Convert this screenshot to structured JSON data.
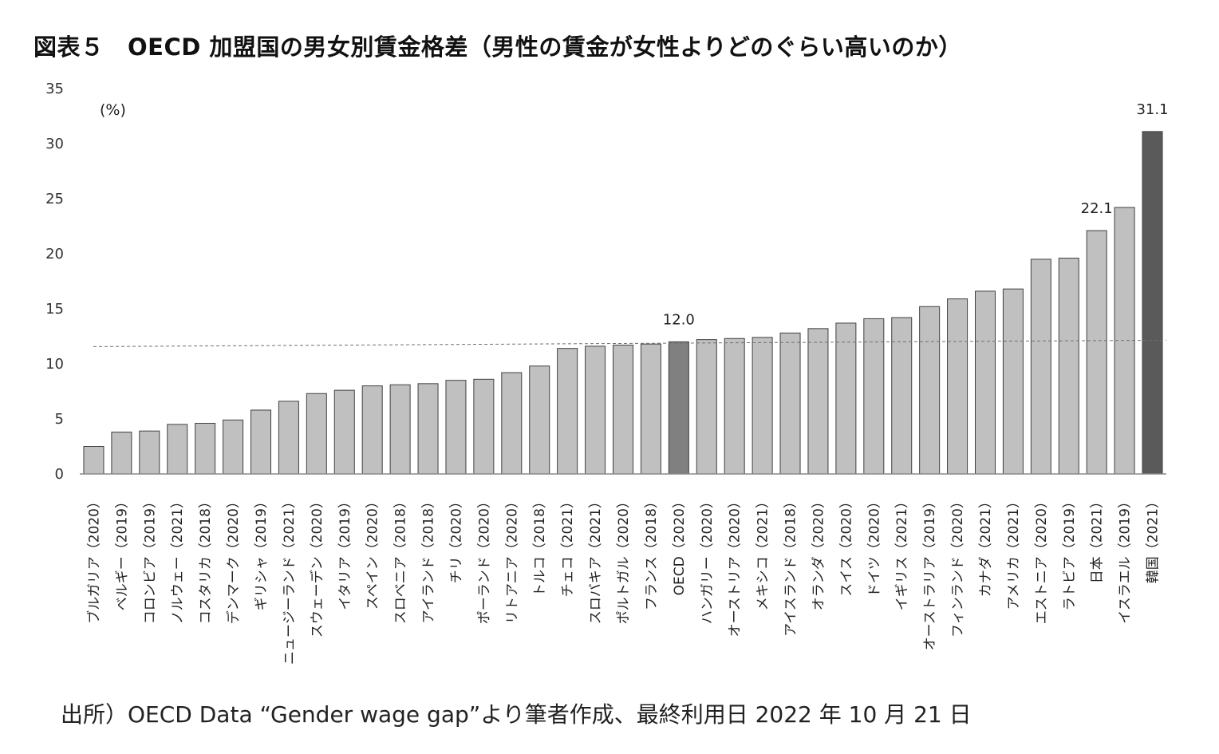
{
  "title": "図表５　OECD 加盟国の男女別賃金格差（男性の賃金が女性よりどのぐらい高いのか）",
  "source": "出所）OECD Data “Gender wage gap”より筆者作成、最終利用日 2022 年 10 月 21 日",
  "chart_data": {
    "type": "bar",
    "ylabel": "(%)",
    "ylim": [
      0,
      35
    ],
    "yticks": [
      0,
      5,
      10,
      15,
      20,
      25,
      30,
      35
    ],
    "grid": false,
    "categories": [
      "ブルガリア（2020）",
      "ベルギー（2019）",
      "コロンビア（2019）",
      "ノルウェー（2021）",
      "コスタリカ（2018）",
      "デンマーク（2020）",
      "ギリシャ（2019）",
      "ニュージーランド（2021）",
      "スウェーデン（2020）",
      "イタリア（2019）",
      "スペイン（2020）",
      "スロベニア（2018）",
      "アイランド（2018）",
      "チリ（2020）",
      "ポーランド（2020）",
      "リトアニア（2020）",
      "トルコ（2018）",
      "チェコ（2021）",
      "スロバキア（2021）",
      "ポルトガル（2020）",
      "フランス（2018）",
      "OECD（2020）",
      "ハンガリー（2020）",
      "オーストリア（2020）",
      "メキシコ（2021）",
      "アイスランド（2018）",
      "オランダ（2020）",
      "スイス（2020）",
      "ドイツ（2020）",
      "イギリス（2021）",
      "オーストラリア（2019）",
      "フィンランド（2020）",
      "カナダ（2021）",
      "アメリカ（2021）",
      "エストニア（2020）",
      "ラトビア（2019）",
      "日本（2021）",
      "イスラエル（2019）",
      "韓国（2021）"
    ],
    "values": [
      2.5,
      3.8,
      3.9,
      4.5,
      4.6,
      4.9,
      5.8,
      6.6,
      7.3,
      7.6,
      8.0,
      8.1,
      8.2,
      8.5,
      8.6,
      9.2,
      9.8,
      11.4,
      11.6,
      11.7,
      11.8,
      12.0,
      12.2,
      12.3,
      12.4,
      12.8,
      13.2,
      13.7,
      14.1,
      14.2,
      15.2,
      15.9,
      16.6,
      16.8,
      19.5,
      19.6,
      22.1,
      24.2,
      31.1
    ],
    "highlight": {
      "OECD（2020）": "#808080",
      "韓国（2021）": "#5a5a5a"
    },
    "data_labels": {
      "OECD（2020）": "12.0",
      "日本（2021）": "22.1",
      "韓国（2021）": "31.1"
    },
    "reference_line": {
      "value": 12.0,
      "style": "dashed"
    },
    "colors": {
      "bar": "#c0c0c0",
      "bar_edge": "#404040",
      "axis": "#888888",
      "ref_line": "#707070"
    }
  }
}
